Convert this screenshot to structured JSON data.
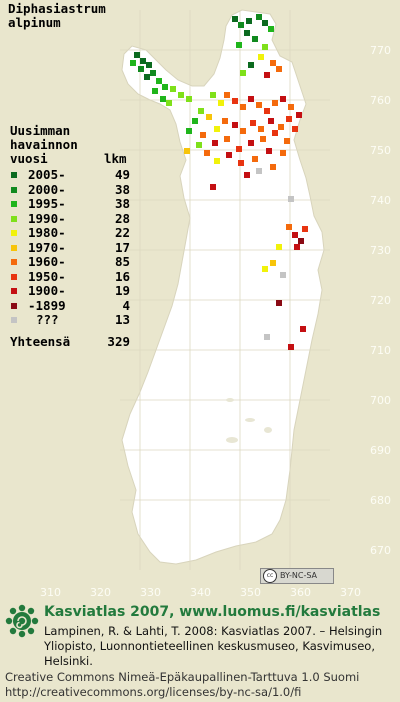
{
  "map": {
    "species_name": "Diphasiastrum\nalpinum",
    "grid_labels_y": [
      "770",
      "760",
      "750",
      "740",
      "730",
      "720",
      "710",
      "700",
      "690",
      "680",
      "670"
    ],
    "grid_labels_x": [
      "310",
      "320",
      "330",
      "340",
      "350",
      "360",
      "370"
    ],
    "map_fill": "#ffffff",
    "background": "#e9e6cd"
  },
  "legend": {
    "title": "Uusimman\nhavainnon",
    "col_year": "vuosi",
    "col_count": "lkm",
    "rows": [
      {
        "range": "2005-",
        "count": "49",
        "color": "#0b6a1f"
      },
      {
        "range": "2000-",
        "count": "38",
        "color": "#118a1f"
      },
      {
        "range": "1995-",
        "count": "38",
        "color": "#1fb51b"
      },
      {
        "range": "1990-",
        "count": "28",
        "color": "#7fe01a"
      },
      {
        "range": "1980-",
        "count": "22",
        "color": "#f1f20b"
      },
      {
        "range": "1970-",
        "count": "17",
        "color": "#f7c40a"
      },
      {
        "range": "1960-",
        "count": "85",
        "color": "#f46a0c"
      },
      {
        "range": "1950-",
        "count": "16",
        "color": "#e83410"
      },
      {
        "range": "1900-",
        "count": "19",
        "color": "#c40f12"
      },
      {
        "range": "-1899",
        "count": "4",
        "color": "#8a0a14"
      },
      {
        "range": "???",
        "count": "13",
        "color": "#c4c4c4"
      }
    ],
    "total_label": "Yhteensä",
    "total_count": "329"
  },
  "badge": {
    "logo": "cc",
    "text": "BY-NC-SA"
  },
  "footer": {
    "title": "Kasviatlas 2007, www.luomus.fi/kasviatlas",
    "citation": "Lampinen, R. & Lahti, T. 2008: Kasviatlas 2007. – Helsingin Yliopisto, Luonnontieteellinen keskusmuseo, Kasvimuseo, Helsinki.",
    "license_line1": "Creative Commons Nimeä-Epäkaupallinen-Tarttuva 1.0 Suomi",
    "license_line2": "http://creativecommons.org/licenses/by-nc-sa/1.0/fi",
    "title_color": "#237a3d"
  }
}
